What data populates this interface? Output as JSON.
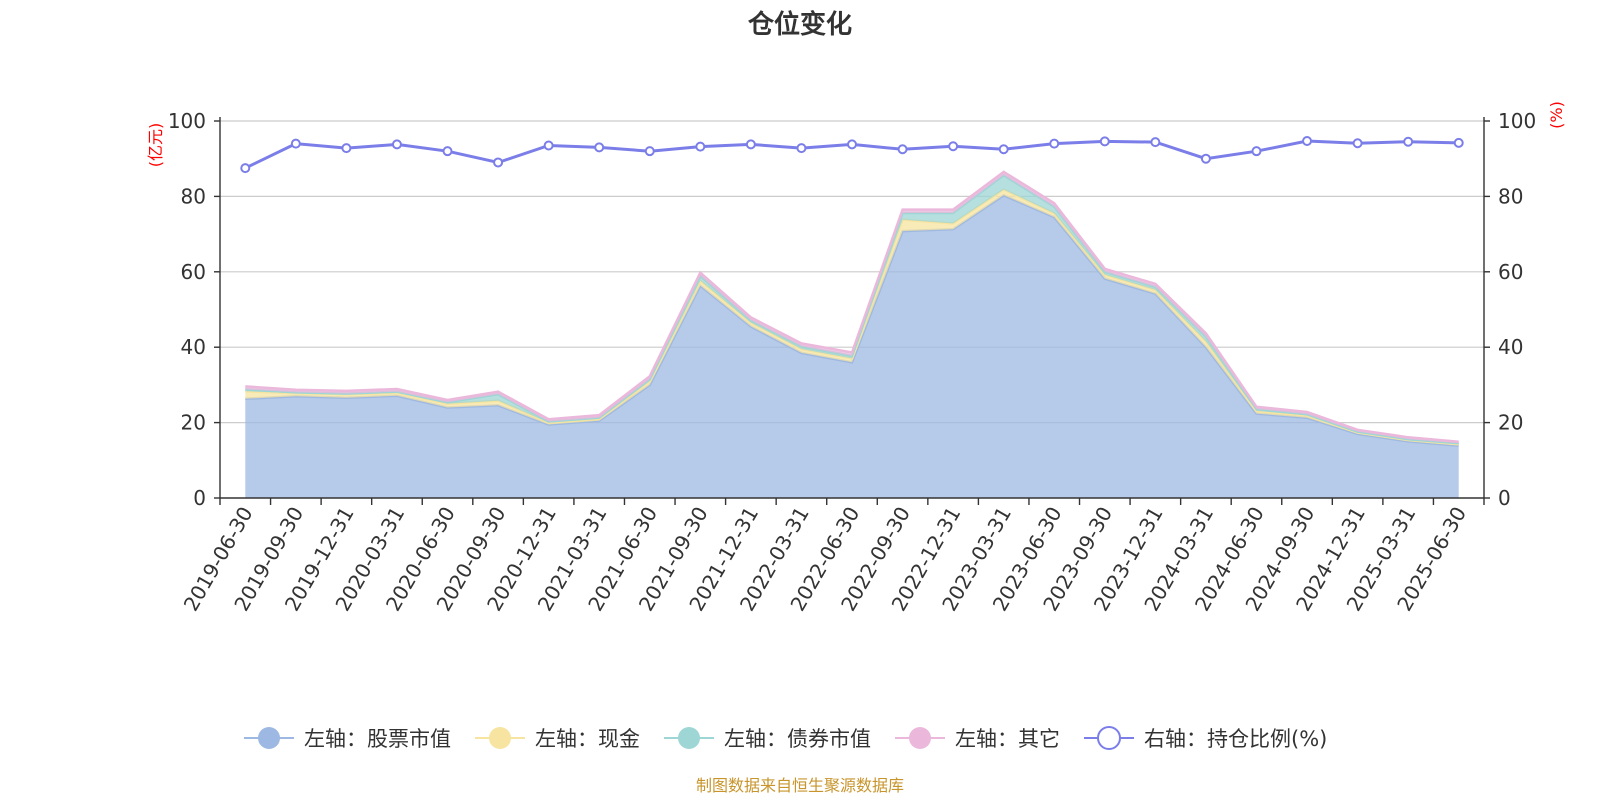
{
  "chart_data": {
    "type": "area",
    "title": "仓位变化",
    "left_axis_unit": "(亿元)",
    "right_axis_unit": "(%)",
    "ylim_left": [
      0,
      100
    ],
    "ylim_right": [
      0,
      100
    ],
    "y_ticks": [
      "0",
      "20",
      "40",
      "60",
      "80",
      "100"
    ],
    "stacked": true,
    "grid": true,
    "legend_position": "bottom",
    "categories": [
      "2019-06-30",
      "2019-09-30",
      "2019-12-31",
      "2020-03-31",
      "2020-06-30",
      "2020-09-30",
      "2020-12-31",
      "2021-03-31",
      "2021-06-30",
      "2021-09-30",
      "2021-12-31",
      "2022-03-31",
      "2022-06-30",
      "2022-09-30",
      "2022-12-31",
      "2023-03-31",
      "2023-06-30",
      "2023-09-30",
      "2023-12-31",
      "2024-03-31",
      "2024-06-30",
      "2024-09-30",
      "2024-12-31",
      "2025-03-31",
      "2025-06-30"
    ],
    "series": [
      {
        "name": "左轴：股票市值",
        "axis": "left",
        "color": "#9db8e2",
        "values": [
          26.3,
          27.0,
          26.6,
          27.1,
          24.0,
          24.6,
          19.5,
          20.5,
          30.0,
          56.3,
          45.5,
          38.5,
          36.0,
          70.8,
          71.3,
          80.3,
          74.5,
          58.2,
          54.2,
          40.0,
          22.4,
          21.3,
          17.0,
          15.0,
          13.9
        ]
      },
      {
        "name": "左轴：现金",
        "axis": "left",
        "color": "#f7e4a0",
        "values": [
          2.0,
          0.8,
          0.9,
          0.8,
          1.0,
          1.2,
          0.5,
          0.5,
          1.0,
          1.3,
          1.0,
          1.0,
          1.0,
          3.0,
          1.5,
          1.5,
          1.0,
          1.0,
          1.0,
          1.5,
          0.7,
          0.6,
          0.4,
          0.4,
          0.4
        ]
      },
      {
        "name": "左轴：债券市值",
        "axis": "left",
        "color": "#9ed6d6",
        "values": [
          0.5,
          0.2,
          0.2,
          0.3,
          0.4,
          1.7,
          0.3,
          0.3,
          0.5,
          1.3,
          0.6,
          0.7,
          0.7,
          1.8,
          2.8,
          3.8,
          1.8,
          0.8,
          0.8,
          1.3,
          0.5,
          0.3,
          0.2,
          0.2,
          0.2
        ]
      },
      {
        "name": "左轴：其它",
        "axis": "left",
        "color": "#ebb8dc",
        "values": [
          0.8,
          0.7,
          0.7,
          0.7,
          0.6,
          0.7,
          0.6,
          0.7,
          0.8,
          0.9,
          0.8,
          0.8,
          0.9,
          0.9,
          0.9,
          0.9,
          0.9,
          0.8,
          0.8,
          0.9,
          0.6,
          0.6,
          0.5,
          0.5,
          0.4
        ]
      },
      {
        "name": "右轴：持仓比例(%)",
        "axis": "right",
        "type": "line",
        "color": "#7b7ee8",
        "values": [
          87.5,
          94.0,
          92.8,
          93.8,
          92.0,
          89.0,
          93.5,
          93.0,
          92.0,
          93.2,
          93.8,
          92.8,
          93.8,
          92.5,
          93.3,
          92.5,
          94.0,
          94.6,
          94.4,
          90.0,
          92.0,
          94.7,
          94.1,
          94.5,
          94.2
        ]
      }
    ],
    "source": "制图数据来自恒生聚源数据库"
  }
}
